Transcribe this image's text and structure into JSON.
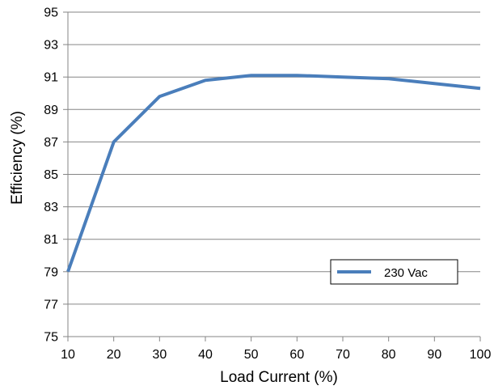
{
  "chart_data": {
    "type": "line",
    "xlabel": "Load Current  (%)",
    "ylabel": "Efficiency (%)",
    "xlim": [
      10,
      100
    ],
    "ylim": [
      75,
      95
    ],
    "xticks": [
      "10",
      "20",
      "30",
      "40",
      "50",
      "60",
      "70",
      "80",
      "90",
      "100"
    ],
    "yticks": [
      "75",
      "77",
      "79",
      "81",
      "83",
      "85",
      "87",
      "89",
      "91",
      "93",
      "95"
    ],
    "grid": "horizontal",
    "legend_position": "bottom-right",
    "series": [
      {
        "name": "230 Vac",
        "color": "#4a7ebb",
        "x": [
          10,
          20,
          30,
          40,
          50,
          60,
          70,
          80,
          90,
          100
        ],
        "y": [
          79.0,
          87.0,
          89.8,
          90.8,
          91.1,
          91.1,
          91.0,
          90.9,
          90.6,
          90.3
        ]
      }
    ]
  }
}
